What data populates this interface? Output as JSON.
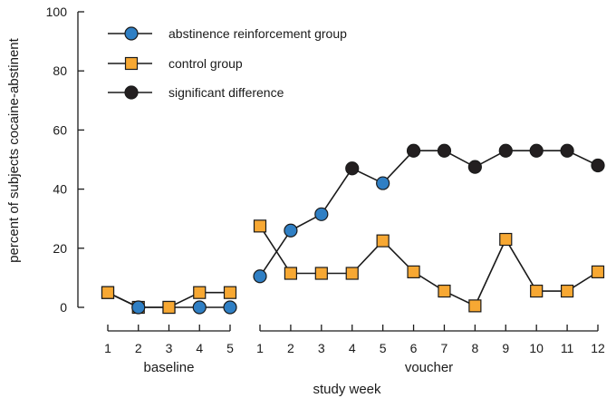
{
  "chart_data": {
    "type": "line",
    "ylabel": "percent of subjects cocaine-abstinent",
    "xlabel": "study week",
    "ylim": [
      0,
      100
    ],
    "y_ticks": [
      0,
      20,
      40,
      60,
      80,
      100
    ],
    "grid": false,
    "legend_position": "top-left",
    "phases": [
      {
        "name": "baseline",
        "weeks": [
          1,
          2,
          3,
          4,
          5
        ]
      },
      {
        "name": "voucher",
        "weeks": [
          1,
          2,
          3,
          4,
          5,
          6,
          7,
          8,
          9,
          10,
          11,
          12
        ]
      }
    ],
    "legend": [
      {
        "label": "abstinence reinforcement group",
        "marker": "circle",
        "color": "#2f7fc4"
      },
      {
        "label": "control group",
        "marker": "square",
        "color": "#f7a833"
      },
      {
        "label": "significant difference",
        "marker": "circle",
        "color": "#231f20"
      }
    ],
    "series": [
      {
        "name": "abstinence reinforcement group",
        "phase": "baseline",
        "x": [
          1,
          2,
          3,
          4,
          5
        ],
        "values": [
          5,
          0,
          0,
          0,
          0
        ],
        "marker_colors": [
          "#f7a833",
          "#2f7fc4",
          "#f7a833",
          "#2f7fc4",
          "#2f7fc4"
        ],
        "markers": [
          "square",
          "circle",
          "square",
          "circle",
          "circle"
        ]
      },
      {
        "name": "control group",
        "phase": "baseline",
        "x": [
          1,
          2,
          3,
          4,
          5
        ],
        "values": [
          5,
          0,
          0,
          5,
          5
        ]
      },
      {
        "name": "abstinence reinforcement group",
        "phase": "voucher",
        "x": [
          1,
          2,
          3,
          4,
          5,
          6,
          7,
          8,
          9,
          10,
          11,
          12
        ],
        "values": [
          10.5,
          26,
          31.5,
          47,
          42,
          53,
          53,
          47.5,
          53,
          53,
          53,
          48
        ],
        "significant": [
          false,
          false,
          false,
          true,
          false,
          true,
          true,
          true,
          true,
          true,
          true,
          true
        ]
      },
      {
        "name": "control group",
        "phase": "voucher",
        "x": [
          1,
          2,
          3,
          4,
          5,
          6,
          7,
          8,
          9,
          10,
          11,
          12
        ],
        "values": [
          27.5,
          11.5,
          11.5,
          11.5,
          22.5,
          12,
          5.5,
          0.5,
          23,
          5.5,
          5.5,
          12
        ]
      }
    ]
  }
}
